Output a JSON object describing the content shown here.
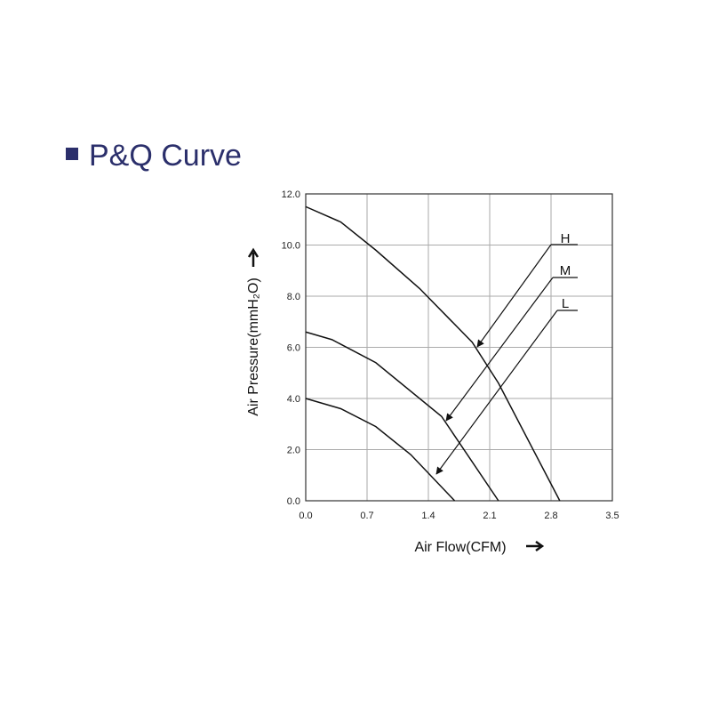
{
  "chart_data": {
    "type": "line",
    "title": "P&Q Curve",
    "x_label": "Air Flow(CFM)",
    "y_label": "Air Pressure(mmH₂O)",
    "xlim": [
      0,
      3.5
    ],
    "ylim": [
      0,
      12
    ],
    "xticks": [
      {
        "value": 0,
        "label": "0.0"
      },
      0.7,
      1.4,
      2.1,
      2.8,
      3.5
    ],
    "yticks": [
      {
        "value": 0,
        "label": "0.0"
      },
      {
        "value": 2,
        "label": "2.0"
      },
      {
        "value": 4,
        "label": "4.0"
      },
      {
        "value": 6,
        "label": "6.0"
      },
      {
        "value": 8,
        "label": "8.0"
      },
      {
        "value": 10,
        "label": "10.0"
      },
      {
        "value": 12,
        "label": "12.0"
      }
    ],
    "grid": true,
    "series": [
      {
        "name": "H",
        "color": "#111111",
        "x": [
          0,
          0.4,
          0.8,
          1.3,
          1.9,
          2.2,
          2.9
        ],
        "values": [
          11.5,
          10.9,
          9.8,
          8.3,
          6.2,
          4.6,
          0
        ]
      },
      {
        "name": "M",
        "color": "#111111",
        "x": [
          0,
          0.3,
          0.8,
          1.55,
          2.2
        ],
        "values": [
          6.6,
          6.3,
          5.4,
          3.3,
          0
        ]
      },
      {
        "name": "L",
        "color": "#111111",
        "x": [
          0,
          0.4,
          0.8,
          1.2,
          1.7
        ],
        "values": [
          4.0,
          3.6,
          2.9,
          1.8,
          0
        ]
      }
    ]
  }
}
